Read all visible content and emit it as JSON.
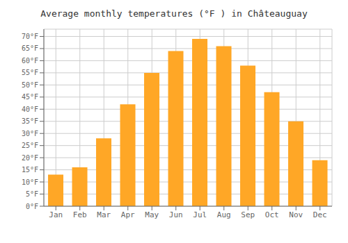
{
  "chart_data": {
    "type": "bar",
    "title": "Average monthly temperatures (°F ) in Châteauguay",
    "categories": [
      "Jan",
      "Feb",
      "Mar",
      "Apr",
      "May",
      "Jun",
      "Jul",
      "Aug",
      "Sep",
      "Oct",
      "Nov",
      "Dec"
    ],
    "values": [
      13,
      16,
      28,
      42,
      55,
      64,
      69,
      66,
      58,
      47,
      35,
      19
    ],
    "color": "#FFA726",
    "ylim": [
      0,
      73
    ],
    "yticks": [
      {
        "value": 0,
        "label": "0°F"
      },
      {
        "value": 5,
        "label": "5°F"
      },
      {
        "value": 10,
        "label": "10°F"
      },
      {
        "value": 15,
        "label": "15°F"
      },
      {
        "value": 20,
        "label": "20°F"
      },
      {
        "value": 25,
        "label": "25°F"
      },
      {
        "value": 30,
        "label": "30°F"
      },
      {
        "value": 35,
        "label": "35°F"
      },
      {
        "value": 40,
        "label": "40°F"
      },
      {
        "value": 45,
        "label": "45°F"
      },
      {
        "value": 50,
        "label": "50°F"
      },
      {
        "value": 55,
        "label": "55°F"
      },
      {
        "value": 60,
        "label": "60°F"
      },
      {
        "value": 65,
        "label": "65°F"
      },
      {
        "value": 70,
        "label": "70°F"
      }
    ],
    "grid": true
  }
}
